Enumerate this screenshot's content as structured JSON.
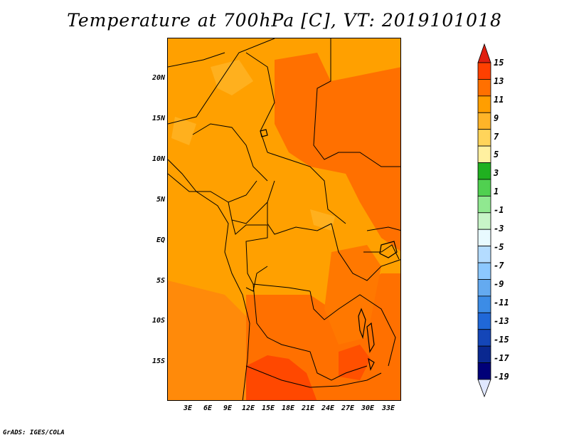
{
  "title": "Temperature at 700hPa [C], VT: 2019101018",
  "footer": "GrADS: IGES/COLA",
  "map": {
    "region": "Central Africa",
    "variable": "Temperature at 700hPa",
    "units": "C",
    "lat_labels": [
      "20N",
      "15N",
      "10N",
      "5N",
      "EQ",
      "5S",
      "10S",
      "15S"
    ],
    "lon_labels": [
      "3E",
      "6E",
      "9E",
      "12E",
      "15E",
      "18E",
      "21E",
      "24E",
      "27E",
      "30E",
      "33E"
    ],
    "dominant_range": "9 to 13",
    "fill_colors": {
      "c9_11": "#FFA000",
      "c11_13": "#FF7000",
      "c13_15": "#FF4000",
      "c7_9": "#FFBE28",
      "ocean_base": "#FF8E08"
    }
  },
  "colorbar": {
    "labels": [
      "15",
      "13",
      "11",
      "9",
      "7",
      "5",
      "3",
      "1",
      "-1",
      "-3",
      "-5",
      "-7",
      "-9",
      "-11",
      "-13",
      "-15",
      "-17",
      "-19"
    ],
    "colors": [
      "#FF4000",
      "#FF7000",
      "#FF9E00",
      "#FFB428",
      "#FFD45A",
      "#FFF0A0",
      "#20B020",
      "#50D050",
      "#90E890",
      "#C8F5C8",
      "#E8FAFF",
      "#B4DCFF",
      "#8CC8FF",
      "#64AAF0",
      "#3C8CE6",
      "#2068D8",
      "#1446B8",
      "#0A2890",
      "#000078"
    ],
    "top_arrow_color": "#E02010",
    "bottom_arrow_color": "#E0E8FF"
  }
}
